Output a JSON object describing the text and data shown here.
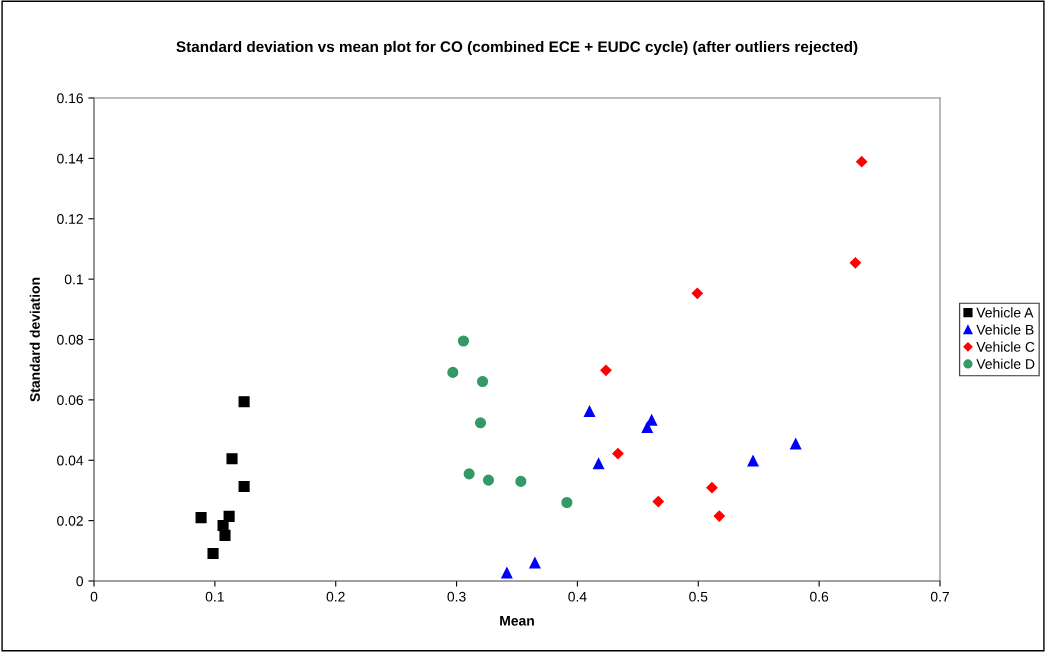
{
  "chart_data": {
    "type": "scatter",
    "title": "Standard deviation vs mean plot for CO (combined ECE + EUDC cycle) (after outliers rejected)",
    "xlabel": "Mean",
    "ylabel": "Standard deviation",
    "xlim": [
      0,
      0.7
    ],
    "xticks": [
      0,
      0.1,
      0.2,
      0.3,
      0.4,
      0.5,
      0.6,
      0.7
    ],
    "ylim": [
      0,
      0.16
    ],
    "yticks": [
      0,
      0.02,
      0.04,
      0.06,
      0.08,
      0.1,
      0.12,
      0.14,
      0.16
    ],
    "grid": false,
    "legend": "right",
    "series": [
      {
        "name": "Vehicle A",
        "color": "#000000",
        "marker": "square",
        "x": [
          0.0886,
          0.0985,
          0.1068,
          0.1084,
          0.1118,
          0.1142,
          0.1242,
          0.1242
        ],
        "values": [
          0.021,
          0.0091,
          0.0184,
          0.0151,
          0.0214,
          0.0405,
          0.0313,
          0.0594
        ]
      },
      {
        "name": "Vehicle B",
        "color": "#0000ff",
        "marker": "triangle",
        "x": [
          0.3416,
          0.3648,
          0.41,
          0.4175,
          0.4578,
          0.4614,
          0.5453,
          0.5806
        ],
        "values": [
          0.0027,
          0.006,
          0.0562,
          0.0389,
          0.0509,
          0.0533,
          0.0398,
          0.0454
        ]
      },
      {
        "name": "Vehicle C",
        "color": "#ff0000",
        "marker": "diamond",
        "x": [
          0.4236,
          0.4335,
          0.4669,
          0.5113,
          0.5174,
          0.4992,
          0.63,
          0.6352
        ],
        "values": [
          0.0698,
          0.0422,
          0.0263,
          0.0309,
          0.0215,
          0.0953,
          0.1054,
          0.1389
        ]
      },
      {
        "name": "Vehicle D",
        "color": "#339966",
        "marker": "circle",
        "x": [
          0.3057,
          0.2969,
          0.3215,
          0.3198,
          0.3104,
          0.3264,
          0.3532,
          0.3913
        ],
        "values": [
          0.0795,
          0.0691,
          0.0661,
          0.0524,
          0.0355,
          0.0334,
          0.033,
          0.026
        ]
      }
    ]
  }
}
